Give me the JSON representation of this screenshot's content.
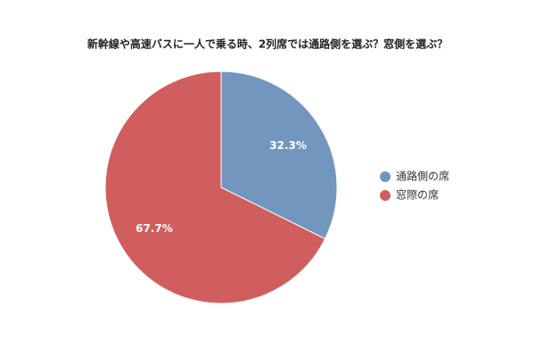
{
  "chart_data": {
    "type": "pie",
    "title": "新幹線や高速バスに一人で乗る時、2列席では通路側を選ぶ？窓側を選ぶ？",
    "categories": [
      "通路側の席",
      "窓際の席"
    ],
    "values": [
      32.3,
      67.7
    ],
    "value_labels": [
      "32.3%",
      "67.7%"
    ],
    "colors": [
      "#7396bf",
      "#d05e5e"
    ],
    "legend": "right"
  }
}
